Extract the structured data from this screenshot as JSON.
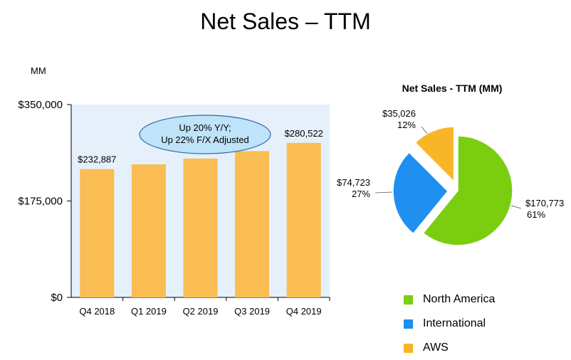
{
  "title": "Net Sales – TTM",
  "colors": {
    "bar": "#F9BD53",
    "plot_bg": "#E6F0FB",
    "north_america": "#7ACE0F",
    "international": "#1F8FF0",
    "aws": "#F9B528"
  },
  "chart_data": [
    {
      "type": "bar",
      "unit_label": "MM",
      "categories": [
        "Q4 2018",
        "Q1 2019",
        "Q2 2019",
        "Q3 2019",
        "Q4 2019"
      ],
      "values": [
        232887,
        241500,
        252000,
        265500,
        280522
      ],
      "data_labels": [
        "$232,887",
        "",
        "",
        "",
        "$280,522"
      ],
      "yticks": [
        "$0",
        "$175,000",
        "$350,000"
      ],
      "ylim": [
        0,
        350000
      ],
      "annotation": [
        "Up 20% Y/Y;",
        "Up 22% F/X Adjusted"
      ]
    },
    {
      "type": "pie",
      "title": "Net Sales - TTM (MM)",
      "slices": [
        {
          "name": "North America",
          "value": 170773,
          "value_label": "$170,773",
          "percent_label": "61%",
          "color": "#7ACE0F"
        },
        {
          "name": "International",
          "value": 74723,
          "value_label": "$74,723",
          "percent_label": "27%",
          "color": "#1F8FF0"
        },
        {
          "name": "AWS",
          "value": 35026,
          "value_label": "$35,026",
          "percent_label": "12%",
          "color": "#F9B528"
        }
      ]
    }
  ]
}
